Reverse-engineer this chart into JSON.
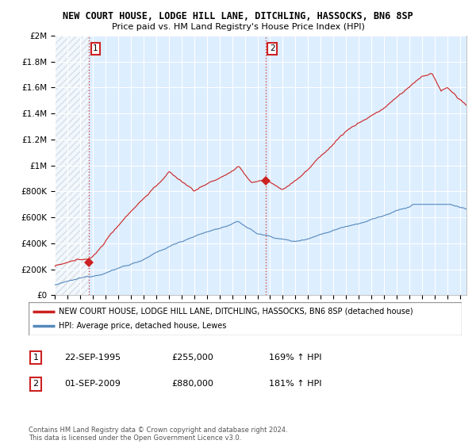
{
  "title": "NEW COURT HOUSE, LODGE HILL LANE, DITCHLING, HASSOCKS, BN6 8SP",
  "subtitle": "Price paid vs. HM Land Registry's House Price Index (HPI)",
  "legend_line1": "NEW COURT HOUSE, LODGE HILL LANE, DITCHLING, HASSOCKS, BN6 8SP (detached house)",
  "legend_line2": "HPI: Average price, detached house, Lewes",
  "annotation1_date": "22-SEP-1995",
  "annotation1_price": "£255,000",
  "annotation1_hpi": "169% ↑ HPI",
  "annotation2_date": "01-SEP-2009",
  "annotation2_price": "£880,000",
  "annotation2_hpi": "181% ↑ HPI",
  "copyright_text": "Contains HM Land Registry data © Crown copyright and database right 2024.\nThis data is licensed under the Open Government Licence v3.0.",
  "hpi_color": "#5588bb",
  "price_color": "#cc2222",
  "annotation_color": "#cc2222",
  "background_color": "#ffffff",
  "plot_bg_color": "#ddeeff",
  "grid_color": "#ffffff",
  "ylim": [
    0,
    2000000
  ],
  "yticks": [
    0,
    200000,
    400000,
    600000,
    800000,
    1000000,
    1200000,
    1400000,
    1600000,
    1800000,
    2000000
  ],
  "ytick_labels": [
    "£0",
    "£200K",
    "£400K",
    "£600K",
    "£800K",
    "£1M",
    "£1.2M",
    "£1.4M",
    "£1.6M",
    "£1.8M",
    "£2M"
  ],
  "sale1_x": 1995.72,
  "sale1_y": 255000,
  "sale2_x": 2009.67,
  "sale2_y": 880000,
  "xmin": 1993,
  "xmax": 2025.5
}
